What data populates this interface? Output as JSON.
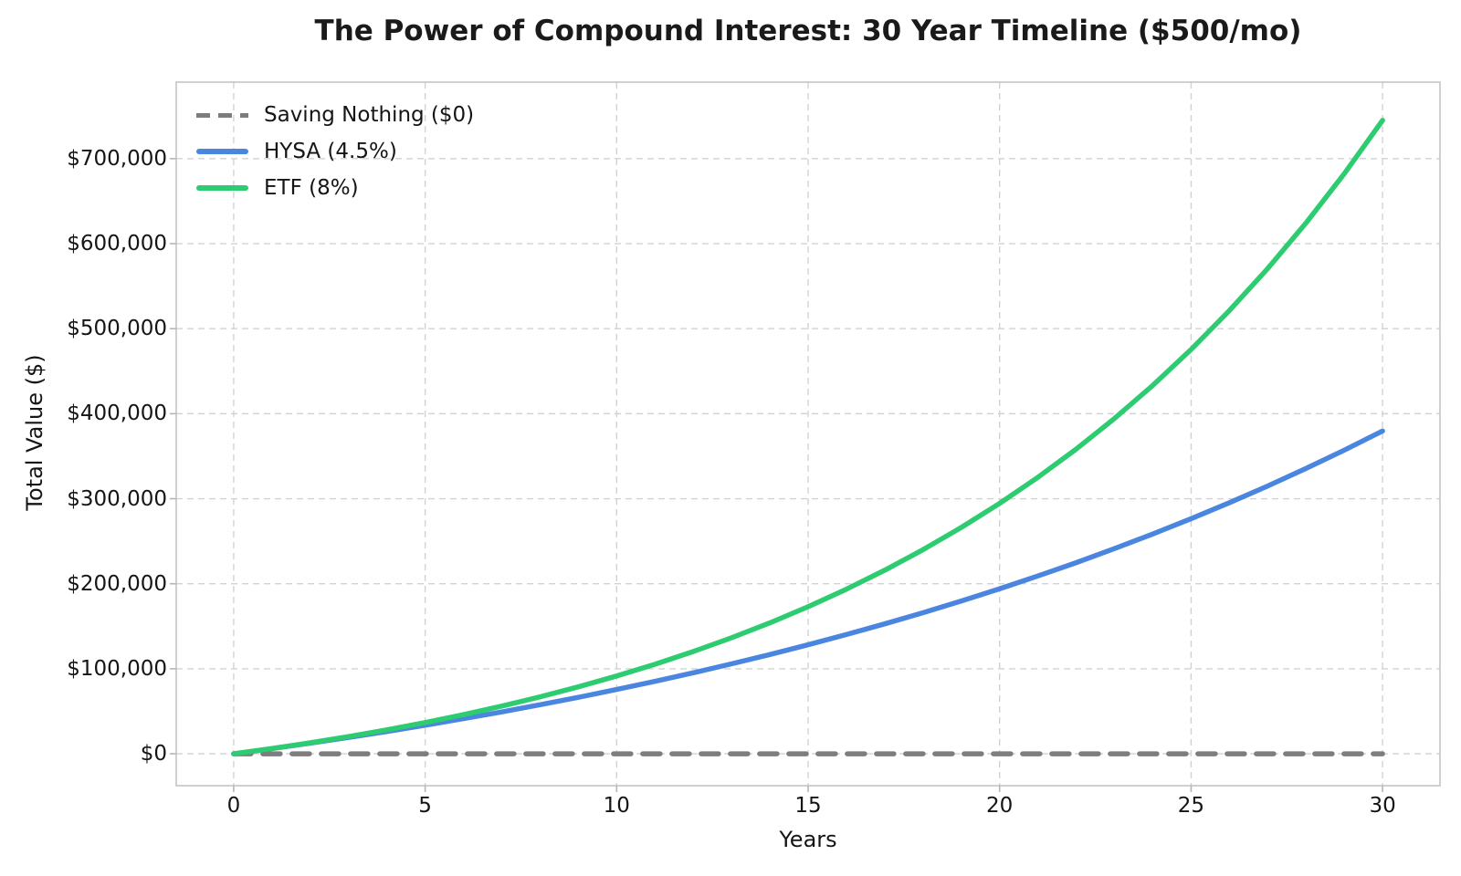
{
  "chart": {
    "title": "The Power of Compound Interest: 30 Year Timeline ($500/mo)",
    "xlabel": "Years",
    "ylabel": "Total Value ($)"
  },
  "colors": {
    "saving_nothing": "#7d7d7d",
    "hysa": "#4a86e0",
    "etf": "#2ecc71",
    "grid": "#d2d2d2",
    "spine": "#c4c4c4",
    "tick": "#b5b5b5",
    "text": "#151515"
  },
  "chart_data": {
    "type": "line",
    "title": "The Power of Compound Interest: 30 Year Timeline ($500/mo)",
    "xlabel": "Years",
    "ylabel": "Total Value ($)",
    "x": [
      0,
      1,
      2,
      3,
      4,
      5,
      6,
      7,
      8,
      9,
      10,
      11,
      12,
      13,
      14,
      15,
      16,
      17,
      18,
      19,
      20,
      21,
      22,
      23,
      24,
      25,
      26,
      27,
      28,
      29,
      30
    ],
    "series": [
      {
        "name": "Saving Nothing ($0)",
        "color": "#7d7d7d",
        "style": "dashed",
        "values": [
          0,
          0,
          0,
          0,
          0,
          0,
          0,
          0,
          0,
          0,
          0,
          0,
          0,
          0,
          0,
          0,
          0,
          0,
          0,
          0,
          0,
          0,
          0,
          0,
          0,
          0,
          0,
          0,
          0,
          0,
          0
        ]
      },
      {
        "name": "HYSA (4.5%)",
        "color": "#4a86e0",
        "style": "solid",
        "values": [
          0,
          6125,
          12532,
          19233,
          26242,
          33573,
          41240,
          49260,
          57649,
          66422,
          75599,
          85197,
          95237,
          105737,
          116720,
          128207,
          140222,
          152789,
          165934,
          179683,
          194062,
          209104,
          224834,
          241287,
          258498,
          276499,
          295327,
          315019,
          335616,
          357160,
          379693
        ]
      },
      {
        "name": "ETF (8%)",
        "color": "#2ecc71",
        "style": "solid",
        "values": [
          0,
          6225,
          12967,
          20268,
          28175,
          36739,
          46013,
          56057,
          66935,
          78715,
          91474,
          105291,
          120255,
          136462,
          154013,
          173021,
          193607,
          215901,
          240046,
          266194,
          294514,
          325183,
          358398,
          394371,
          433328,
          475520,
          521213,
          570698,
          624291,
          682332,
          745041
        ]
      }
    ],
    "x_ticks": [
      0,
      5,
      10,
      15,
      20,
      25,
      30
    ],
    "x_tick_labels": [
      "0",
      "5",
      "10",
      "15",
      "20",
      "25",
      "30"
    ],
    "y_ticks": [
      0,
      100000,
      200000,
      300000,
      400000,
      500000,
      600000,
      700000
    ],
    "y_tick_labels": [
      "$0",
      "$100,000",
      "$200,000",
      "$300,000",
      "$400,000",
      "$500,000",
      "$600,000",
      "$700,000"
    ],
    "xlim": [
      -1.5,
      31.5
    ],
    "ylim": [
      -37500,
      790000
    ],
    "grid": true,
    "legend_position": "upper left"
  }
}
